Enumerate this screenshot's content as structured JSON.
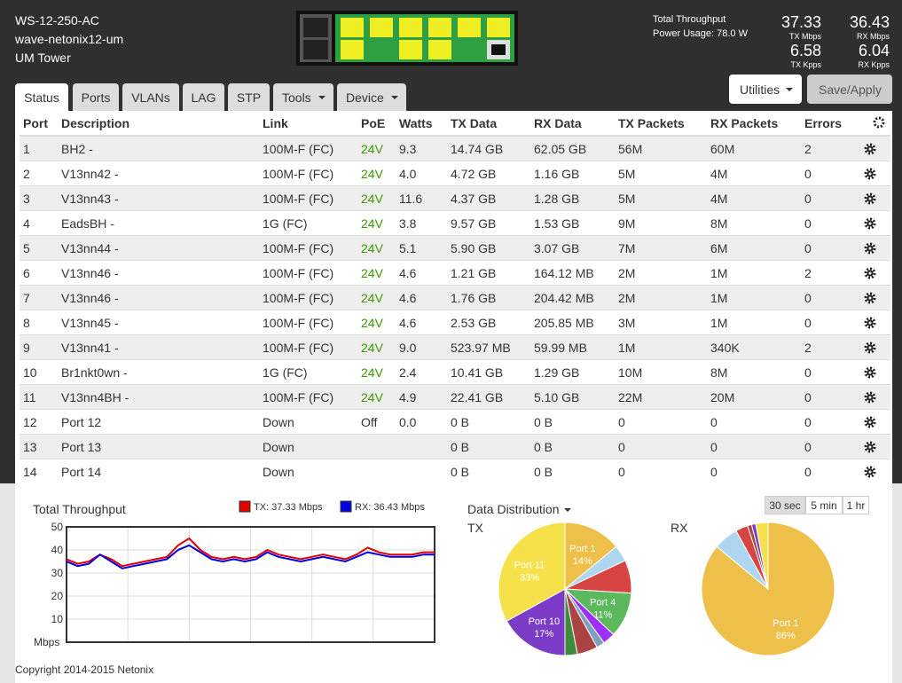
{
  "header": {
    "device": [
      "WS-12-250-AC",
      "wave-netonix12-um",
      "UM Tower"
    ],
    "stats": [
      "Total Throughput",
      "Power Usage: 78.0 W"
    ],
    "metrics": [
      {
        "value": "37.33",
        "label": "TX Mbps"
      },
      {
        "value": "36.43",
        "label": "RX Mbps"
      },
      {
        "value": "6.58",
        "label": "TX Kpps"
      },
      {
        "value": "6.04",
        "label": "RX Kpps"
      }
    ]
  },
  "tabs": [
    "Status",
    "Ports",
    "VLANs",
    "LAG",
    "STP",
    "Tools",
    "Device"
  ],
  "buttons": [
    "Utilities",
    "Save/Apply"
  ],
  "table": {
    "columns": [
      "Port",
      "Description",
      "Link",
      "PoE",
      "Watts",
      "TX Data",
      "RX Data",
      "TX Packets",
      "RX Packets",
      "Errors"
    ],
    "rows": [
      [
        "1",
        "BH2 -",
        "100M-F (FC)",
        "24V",
        "9.3",
        "14.74 GB",
        "62.05 GB",
        "56M",
        "60M",
        "2"
      ],
      [
        "2",
        "V13nn42 -",
        "100M-F (FC)",
        "24V",
        "4.0",
        "4.72 GB",
        "1.16 GB",
        "5M",
        "4M",
        "0"
      ],
      [
        "3",
        "V13nn43 -",
        "100M-F (FC)",
        "24V",
        "11.6",
        "4.37 GB",
        "1.28 GB",
        "5M",
        "4M",
        "0"
      ],
      [
        "4",
        "EadsBH -",
        "1G (FC)",
        "24V",
        "3.8",
        "9.57 GB",
        "1.53 GB",
        "9M",
        "8M",
        "0"
      ],
      [
        "5",
        "V13nn44 -",
        "100M-F (FC)",
        "24V",
        "5.1",
        "5.90 GB",
        "3.07 GB",
        "7M",
        "6M",
        "0"
      ],
      [
        "6",
        "V13nn46 -",
        "100M-F (FC)",
        "24V",
        "4.6",
        "1.21 GB",
        "164.12 MB",
        "2M",
        "1M",
        "2"
      ],
      [
        "7",
        "V13nn46 -",
        "100M-F (FC)",
        "24V",
        "4.6",
        "1.76 GB",
        "204.42 MB",
        "2M",
        "1M",
        "0"
      ],
      [
        "8",
        "V13nn45 -",
        "100M-F (FC)",
        "24V",
        "4.6",
        "2.53 GB",
        "205.85 MB",
        "3M",
        "1M",
        "0"
      ],
      [
        "9",
        "V13nn41 -",
        "100M-F (FC)",
        "24V",
        "9.0",
        "523.97 MB",
        "59.99 MB",
        "1M",
        "340K",
        "2"
      ],
      [
        "10",
        "Br1nkt0wn -",
        "1G (FC)",
        "24V",
        "2.4",
        "10.41 GB",
        "1.29 GB",
        "10M",
        "8M",
        "0"
      ],
      [
        "11",
        "V13nn4BH -",
        "100M-F (FC)",
        "24V",
        "4.9",
        "22.41 GB",
        "5.10 GB",
        "22M",
        "20M",
        "0"
      ],
      [
        "12",
        "Port 12",
        "Down",
        "Off",
        "0.0",
        "0 B",
        "0 B",
        "0",
        "0",
        "0"
      ],
      [
        "13",
        "Port 13",
        "Down",
        null,
        null,
        "0 B",
        "0 B",
        "0",
        "0",
        "0"
      ],
      [
        "14",
        "Port 14",
        "Down",
        null,
        null,
        "0 B",
        "0 B",
        "0",
        "0",
        "0"
      ]
    ]
  },
  "distribution": {
    "title": "Data Distribution",
    "periods": [
      "30 sec",
      "5 min",
      "1 hr"
    ]
  },
  "chart_data": [
    {
      "type": "line",
      "title": "Total Throughput",
      "ylabel": "Mbps",
      "ylim": [
        0,
        50
      ],
      "yticks": [
        10,
        20,
        30,
        40,
        50
      ],
      "grid": true,
      "series": [
        {
          "name": "TX: 37.33 Mbps",
          "color": "#e00000",
          "values": [
            36,
            34,
            35,
            38,
            36,
            33,
            34,
            35,
            36,
            37,
            42,
            45,
            40,
            37,
            36,
            37,
            36,
            37,
            40,
            38,
            37,
            36,
            37,
            38,
            37,
            36,
            38,
            41,
            39,
            38,
            38,
            38,
            39,
            39
          ]
        },
        {
          "name": "RX: 36.43 Mbps",
          "color": "#0000e0",
          "values": [
            35,
            33,
            34,
            38,
            35,
            32,
            33,
            34,
            35,
            36,
            40,
            42,
            39,
            36,
            35,
            36,
            35,
            36,
            39,
            37,
            36,
            35,
            36,
            37,
            36,
            35,
            37,
            39,
            38,
            37,
            37,
            37,
            38,
            38
          ]
        }
      ]
    },
    {
      "type": "pie",
      "title": "TX",
      "categories": [
        "Port 1",
        null,
        null,
        "Port 4",
        null,
        null,
        null,
        null,
        "Port 10",
        "Port 11"
      ],
      "values": [
        14,
        4,
        8,
        11,
        3,
        2,
        5,
        3,
        17,
        33
      ],
      "value_labels": [
        "14%",
        null,
        null,
        "11%",
        null,
        null,
        null,
        null,
        "17%",
        "33%"
      ],
      "colors": [
        "#eec04a",
        "#aed6f1",
        "#d64541",
        "#5cb85c",
        "#9b30ff",
        "#7f9fbf",
        "#a94442",
        "#3d8b3d",
        "#7d3cc8",
        "#f7e14a"
      ]
    },
    {
      "type": "pie",
      "title": "RX",
      "categories": [
        "Port 1",
        null,
        null,
        null,
        null,
        null
      ],
      "values": [
        86,
        6,
        3,
        1,
        1,
        3
      ],
      "value_labels": [
        "86%",
        null,
        null,
        null,
        null,
        null
      ],
      "colors": [
        "#eec04a",
        "#aed6f1",
        "#d64541",
        "#a94442",
        "#7d3cc8",
        "#f7e14a"
      ]
    }
  ],
  "footer": "Copyright 2014-2015 Netonix"
}
